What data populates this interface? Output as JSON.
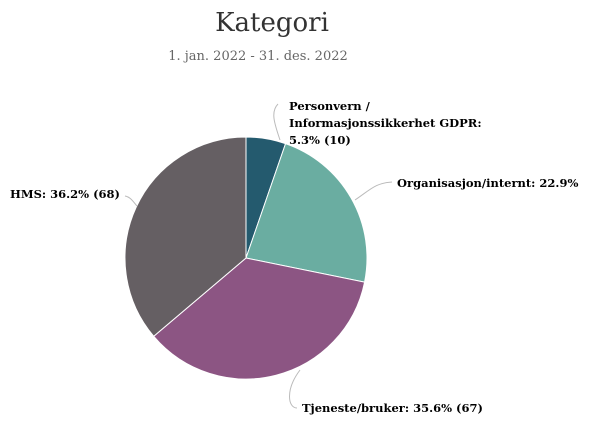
{
  "chart_data": {
    "type": "pie",
    "title": "Kategori",
    "subtitle": "1. jan. 2022 - 31. des. 2022",
    "values": [
      5.3,
      22.9,
      35.6,
      36.2
    ],
    "value_labels": [
      [
        "Personvern /",
        "Informasjonssikkerhet GDPR:",
        "5.3% (10)"
      ],
      [
        "Organisasjon/internt: 22.9%"
      ],
      [
        "Tjeneste/bruker: 35.6% (67)"
      ],
      [
        "HMS: 36.2% (68)"
      ]
    ],
    "colors": [
      "#245a6e",
      "#6aada1",
      "#8c5583",
      "#655f63"
    ]
  }
}
